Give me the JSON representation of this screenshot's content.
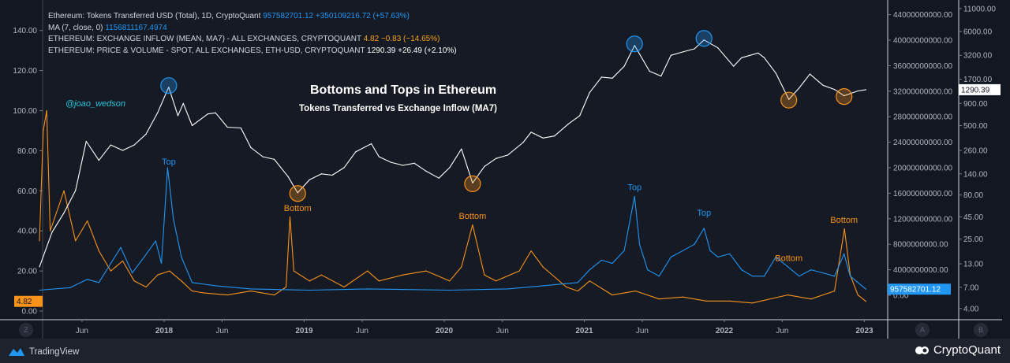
{
  "legend": {
    "tokens": {
      "label": "Ethereum: Tokens Transferred USD (Total), 1D, CryptoQuant",
      "value": "957582701.12",
      "change": "+350109216.72 (+57.63%)"
    },
    "ma": {
      "label": "MA (7, close, 0)",
      "value": "1156811167.4974"
    },
    "inflow": {
      "label": "ETHEREUM: EXCHANGE INFLOW (MEAN, MA7) - ALL EXCHANGES, CRYPTOQUANT",
      "value": "4.82",
      "change": "−0.83 (−14.65%)"
    },
    "price": {
      "label": "ETHEREUM: PRICE & VOLUME - SPOT, ALL EXCHANGES, ETH-USD, CRYPTOQUANT",
      "value": "1290.39",
      "change": "+26.49 (+2.10%)"
    }
  },
  "branding": {
    "tradingview": "TradingView",
    "cryptoquant": "CryptoQuant",
    "scale_left": "Z",
    "scale_a": "A",
    "scale_b": "B"
  },
  "chart_data": {
    "type": "line",
    "title": "Bottoms and Tops in Ethereum",
    "subtitle": "Tokens Transferred vs Exchange Inflow (MA7)",
    "watermark": "@joao_wedson",
    "x_ticks": [
      "Jun",
      "2018",
      "Jun",
      "2019",
      "Jun",
      "2020",
      "Jun",
      "2021",
      "Jun",
      "2022",
      "Jun",
      "2023"
    ],
    "x_tick_dates": [
      "2017-06-01",
      "2018-01-01",
      "2018-06-01",
      "2019-01-01",
      "2019-06-01",
      "2020-01-01",
      "2020-06-01",
      "2021-01-01",
      "2021-06-01",
      "2022-01-01",
      "2022-06-01",
      "2023-01-01"
    ],
    "axes": {
      "left": {
        "scale": "linear",
        "range": [
          0,
          140
        ],
        "ticks": [
          "0.00",
          "20.00",
          "40.00",
          "60.00",
          "80.00",
          "100.00",
          "120.00",
          "140.00"
        ],
        "last_value_label": "4.82"
      },
      "right_a": {
        "scale": "linear",
        "ticks": [
          "0.00",
          "4000000000.00",
          "8000000000.00",
          "12000000000.00",
          "16000000000.00",
          "20000000000.00",
          "24000000000.00",
          "28000000000.00",
          "32000000000.00",
          "36000000000.00",
          "40000000000.00",
          "44000000000.00"
        ],
        "last_value_label": "957582701.12"
      },
      "right_b": {
        "scale": "log",
        "ticks": [
          "4.00",
          "7.00",
          "13.00",
          "25.00",
          "45.00",
          "80.00",
          "140.00",
          "260.00",
          "500.00",
          "900.00",
          "1700.00",
          "3200.00",
          "6000.00",
          "11000.00"
        ],
        "last_value_label": "1290.39"
      }
    },
    "grid": false,
    "series": [
      {
        "name": "ETHEREUM: PRICE & VOLUME - SPOT, ALL EXCHANGES, ETH-USD, CRYPTOQUANT",
        "axis": "right_b",
        "color": "#ffffff",
        "points": [
          [
            "2017-02-10",
            12
          ],
          [
            "2017-03-15",
            30
          ],
          [
            "2017-04-15",
            50
          ],
          [
            "2017-05-15",
            90
          ],
          [
            "2017-06-12",
            330
          ],
          [
            "2017-07-15",
            200
          ],
          [
            "2017-08-15",
            300
          ],
          [
            "2017-09-15",
            260
          ],
          [
            "2017-10-15",
            300
          ],
          [
            "2017-11-15",
            400
          ],
          [
            "2017-12-15",
            700
          ],
          [
            "2018-01-13",
            1380
          ],
          [
            "2018-02-06",
            650
          ],
          [
            "2018-02-20",
            900
          ],
          [
            "2018-03-15",
            500
          ],
          [
            "2018-04-25",
            680
          ],
          [
            "2018-05-15",
            700
          ],
          [
            "2018-06-15",
            480
          ],
          [
            "2018-07-20",
            470
          ],
          [
            "2018-08-15",
            280
          ],
          [
            "2018-09-15",
            220
          ],
          [
            "2018-10-15",
            205
          ],
          [
            "2018-11-20",
            130
          ],
          [
            "2018-12-15",
            85
          ],
          [
            "2019-01-15",
            120
          ],
          [
            "2019-02-15",
            140
          ],
          [
            "2019-03-15",
            135
          ],
          [
            "2019-04-15",
            165
          ],
          [
            "2019-05-15",
            250
          ],
          [
            "2019-06-25",
            310
          ],
          [
            "2019-07-15",
            220
          ],
          [
            "2019-08-15",
            190
          ],
          [
            "2019-09-15",
            175
          ],
          [
            "2019-10-15",
            185
          ],
          [
            "2019-11-15",
            150
          ],
          [
            "2019-12-18",
            125
          ],
          [
            "2020-01-15",
            165
          ],
          [
            "2020-02-15",
            270
          ],
          [
            "2020-03-15",
            110
          ],
          [
            "2020-04-15",
            170
          ],
          [
            "2020-05-15",
            210
          ],
          [
            "2020-06-15",
            230
          ],
          [
            "2020-07-25",
            320
          ],
          [
            "2020-08-15",
            420
          ],
          [
            "2020-09-15",
            360
          ],
          [
            "2020-10-15",
            380
          ],
          [
            "2020-11-20",
            520
          ],
          [
            "2020-12-20",
            650
          ],
          [
            "2021-01-15",
            1200
          ],
          [
            "2021-02-15",
            1800
          ],
          [
            "2021-03-15",
            1750
          ],
          [
            "2021-04-15",
            2400
          ],
          [
            "2021-05-12",
            4150
          ],
          [
            "2021-06-20",
            2100
          ],
          [
            "2021-07-20",
            1850
          ],
          [
            "2021-08-15",
            3200
          ],
          [
            "2021-09-15",
            3500
          ],
          [
            "2021-10-15",
            3800
          ],
          [
            "2021-11-09",
            4800
          ],
          [
            "2021-12-15",
            3900
          ],
          [
            "2022-01-25",
            2400
          ],
          [
            "2022-02-15",
            3000
          ],
          [
            "2022-03-30",
            3400
          ],
          [
            "2022-04-15",
            3000
          ],
          [
            "2022-05-15",
            2000
          ],
          [
            "2022-06-18",
            1000
          ],
          [
            "2022-07-15",
            1350
          ],
          [
            "2022-08-12",
            1950
          ],
          [
            "2022-09-15",
            1450
          ],
          [
            "2022-10-15",
            1300
          ],
          [
            "2022-11-09",
            1100
          ],
          [
            "2022-12-15",
            1250
          ],
          [
            "2023-01-05",
            1290.39
          ]
        ]
      },
      {
        "name": "Ethereum: Tokens Transferred USD (Total), 1D, CryptoQuant",
        "axis": "right_a",
        "color": "#2196f3",
        "points": [
          [
            "2017-02-10",
            800000000
          ],
          [
            "2017-05-01",
            1200000000
          ],
          [
            "2017-06-15",
            2500000000
          ],
          [
            "2017-07-15",
            2000000000
          ],
          [
            "2017-08-15",
            5000000000
          ],
          [
            "2017-09-10",
            7500000000
          ],
          [
            "2017-10-10",
            3500000000
          ],
          [
            "2017-11-10",
            6000000000
          ],
          [
            "2017-12-10",
            8500000000
          ],
          [
            "2017-12-25",
            5000000000
          ],
          [
            "2018-01-10",
            20000000000
          ],
          [
            "2018-01-25",
            12000000000
          ],
          [
            "2018-02-15",
            6000000000
          ],
          [
            "2018-03-15",
            2000000000
          ],
          [
            "2018-05-15",
            1500000000
          ],
          [
            "2018-08-15",
            1000000000
          ],
          [
            "2019-01-15",
            800000000
          ],
          [
            "2019-06-15",
            1000000000
          ],
          [
            "2020-01-15",
            800000000
          ],
          [
            "2020-06-15",
            1000000000
          ],
          [
            "2020-09-15",
            1500000000
          ],
          [
            "2020-12-15",
            2000000000
          ],
          [
            "2021-01-15",
            4000000000
          ],
          [
            "2021-02-15",
            5500000000
          ],
          [
            "2021-03-15",
            5000000000
          ],
          [
            "2021-04-15",
            7000000000
          ],
          [
            "2021-05-12",
            15500000000
          ],
          [
            "2021-05-25",
            8000000000
          ],
          [
            "2021-06-15",
            4000000000
          ],
          [
            "2021-07-15",
            3000000000
          ],
          [
            "2021-08-15",
            6000000000
          ],
          [
            "2021-09-15",
            7000000000
          ],
          [
            "2021-10-15",
            8000000000
          ],
          [
            "2021-11-09",
            10500000000
          ],
          [
            "2021-11-25",
            7000000000
          ],
          [
            "2021-12-15",
            6000000000
          ],
          [
            "2022-01-15",
            6500000000
          ],
          [
            "2022-02-15",
            4000000000
          ],
          [
            "2022-03-15",
            3000000000
          ],
          [
            "2022-04-15",
            3000000000
          ],
          [
            "2022-05-15",
            6000000000
          ],
          [
            "2022-06-15",
            4500000000
          ],
          [
            "2022-07-15",
            3000000000
          ],
          [
            "2022-08-15",
            4000000000
          ],
          [
            "2022-09-15",
            3500000000
          ],
          [
            "2022-10-15",
            3000000000
          ],
          [
            "2022-11-09",
            6500000000
          ],
          [
            "2022-11-25",
            3000000000
          ],
          [
            "2022-12-15",
            2000000000
          ],
          [
            "2023-01-05",
            957582701.12
          ]
        ]
      },
      {
        "name": "ETHEREUM: EXCHANGE INFLOW (MEAN, MA7) - ALL EXCHANGES, CRYPTOQUANT",
        "axis": "left",
        "color": "#f7931a",
        "points": [
          [
            "2017-02-10",
            35
          ],
          [
            "2017-02-20",
            90
          ],
          [
            "2017-03-01",
            100
          ],
          [
            "2017-03-10",
            40
          ],
          [
            "2017-04-15",
            60
          ],
          [
            "2017-05-15",
            35
          ],
          [
            "2017-06-15",
            45
          ],
          [
            "2017-07-15",
            30
          ],
          [
            "2017-08-15",
            20
          ],
          [
            "2017-09-15",
            25
          ],
          [
            "2017-10-15",
            15
          ],
          [
            "2017-11-15",
            12
          ],
          [
            "2017-12-15",
            18
          ],
          [
            "2018-01-15",
            20
          ],
          [
            "2018-02-15",
            15
          ],
          [
            "2018-03-15",
            10
          ],
          [
            "2018-04-15",
            9
          ],
          [
            "2018-06-15",
            8
          ],
          [
            "2018-08-15",
            10
          ],
          [
            "2018-10-15",
            8
          ],
          [
            "2018-11-15",
            12
          ],
          [
            "2018-11-25",
            47
          ],
          [
            "2018-12-05",
            20
          ],
          [
            "2019-01-15",
            15
          ],
          [
            "2019-02-15",
            18
          ],
          [
            "2019-04-15",
            12
          ],
          [
            "2019-06-15",
            20
          ],
          [
            "2019-07-15",
            15
          ],
          [
            "2019-09-15",
            18
          ],
          [
            "2019-11-15",
            20
          ],
          [
            "2020-01-15",
            15
          ],
          [
            "2020-02-15",
            22
          ],
          [
            "2020-03-15",
            43
          ],
          [
            "2020-04-15",
            18
          ],
          [
            "2020-05-15",
            15
          ],
          [
            "2020-07-15",
            20
          ],
          [
            "2020-08-15",
            30
          ],
          [
            "2020-09-15",
            22
          ],
          [
            "2020-11-15",
            12
          ],
          [
            "2020-12-15",
            10
          ],
          [
            "2021-01-15",
            15
          ],
          [
            "2021-03-15",
            8
          ],
          [
            "2021-05-15",
            10
          ],
          [
            "2021-07-15",
            6
          ],
          [
            "2021-09-15",
            7
          ],
          [
            "2021-11-15",
            5
          ],
          [
            "2022-01-15",
            5
          ],
          [
            "2022-03-15",
            4
          ],
          [
            "2022-06-15",
            8
          ],
          [
            "2022-08-15",
            6
          ],
          [
            "2022-10-15",
            10
          ],
          [
            "2022-11-10",
            41
          ],
          [
            "2022-11-25",
            18
          ],
          [
            "2022-12-15",
            8
          ],
          [
            "2023-01-05",
            4.82
          ]
        ]
      }
    ],
    "annotations": [
      {
        "text": "Top",
        "color": "#2196f3",
        "date": "2018-01-13",
        "axis": "right_a",
        "value": 20500000000,
        "circle_on": "price"
      },
      {
        "text": "Bottom",
        "color": "#f7931a",
        "date": "2018-12-15",
        "axis": "left",
        "value": 50,
        "circle_on": "price"
      },
      {
        "text": "Bottom",
        "color": "#f7931a",
        "date": "2020-03-15",
        "axis": "left",
        "value": 46,
        "circle_on": "price"
      },
      {
        "text": "Top",
        "color": "#2196f3",
        "date": "2021-05-12",
        "axis": "right_a",
        "value": 16500000000,
        "circle_on": "price"
      },
      {
        "text": "Top",
        "color": "#2196f3",
        "date": "2021-11-09",
        "axis": "right_a",
        "value": 12500000000,
        "circle_on": "price"
      },
      {
        "text": "Bottom",
        "color": "#f7931a",
        "date": "2022-06-18",
        "axis": "left",
        "value": 25,
        "circle_on": "price"
      },
      {
        "text": "Bottom",
        "color": "#f7931a",
        "date": "2022-11-09",
        "axis": "left",
        "value": 44,
        "circle_on": "price"
      }
    ]
  }
}
